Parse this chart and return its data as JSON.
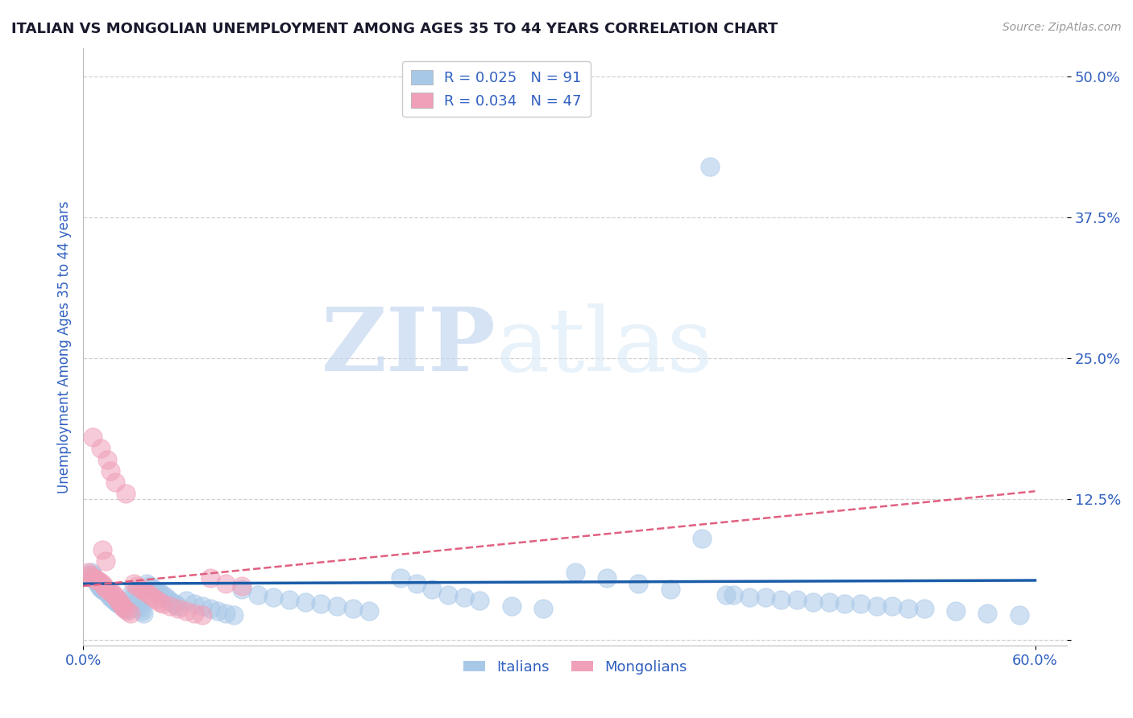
{
  "title": "ITALIAN VS MONGOLIAN UNEMPLOYMENT AMONG AGES 35 TO 44 YEARS CORRELATION CHART",
  "source": "Source: ZipAtlas.com",
  "ylabel_label": "Unemployment Among Ages 35 to 44 years",
  "legend_label_italian": "Italians",
  "legend_label_mongolian": "Mongolians",
  "xlim": [
    0.0,
    0.62
  ],
  "ylim": [
    -0.005,
    0.525
  ],
  "yticks": [
    0.0,
    0.125,
    0.25,
    0.375,
    0.5
  ],
  "ytick_labels": [
    "",
    "12.5%",
    "25.0%",
    "37.5%",
    "50.0%"
  ],
  "italian_color": "#a8c8e8",
  "mongolian_color": "#f0a0b8",
  "italian_line_color": "#1a5ca8",
  "mongolian_line_color": "#e06080",
  "background_color": "#ffffff",
  "title_color": "#1a1a2e",
  "axis_label_color": "#3060c0",
  "tick_label_color": "#3060c0",
  "R_italian": 0.025,
  "N_italian": 91,
  "R_mongolian": 0.034,
  "N_mongolian": 47,
  "italian_x": [
    0.005,
    0.006,
    0.007,
    0.008,
    0.009,
    0.01,
    0.011,
    0.012,
    0.013,
    0.014,
    0.015,
    0.016,
    0.017,
    0.018,
    0.019,
    0.02,
    0.021,
    0.022,
    0.023,
    0.024,
    0.025,
    0.026,
    0.027,
    0.028,
    0.03,
    0.031,
    0.032,
    0.033,
    0.034,
    0.035,
    0.036,
    0.037,
    0.038,
    0.04,
    0.042,
    0.044,
    0.046,
    0.048,
    0.05,
    0.052,
    0.054,
    0.056,
    0.058,
    0.06,
    0.065,
    0.07,
    0.075,
    0.08,
    0.085,
    0.09,
    0.095,
    0.1,
    0.11,
    0.12,
    0.13,
    0.14,
    0.15,
    0.16,
    0.17,
    0.18,
    0.2,
    0.21,
    0.22,
    0.23,
    0.24,
    0.25,
    0.27,
    0.29,
    0.31,
    0.33,
    0.35,
    0.37,
    0.39,
    0.41,
    0.43,
    0.45,
    0.47,
    0.49,
    0.51,
    0.53,
    0.55,
    0.57,
    0.59,
    0.395,
    0.405,
    0.42,
    0.44,
    0.46,
    0.48,
    0.5,
    0.52
  ],
  "italian_y": [
    0.06,
    0.058,
    0.055,
    0.052,
    0.05,
    0.048,
    0.046,
    0.045,
    0.044,
    0.043,
    0.042,
    0.04,
    0.038,
    0.037,
    0.036,
    0.035,
    0.034,
    0.033,
    0.032,
    0.031,
    0.03,
    0.029,
    0.028,
    0.027,
    0.04,
    0.038,
    0.036,
    0.034,
    0.032,
    0.03,
    0.028,
    0.026,
    0.024,
    0.05,
    0.048,
    0.046,
    0.044,
    0.042,
    0.04,
    0.038,
    0.036,
    0.034,
    0.032,
    0.03,
    0.035,
    0.032,
    0.03,
    0.028,
    0.026,
    0.024,
    0.022,
    0.045,
    0.04,
    0.038,
    0.036,
    0.034,
    0.032,
    0.03,
    0.028,
    0.026,
    0.055,
    0.05,
    0.045,
    0.04,
    0.038,
    0.035,
    0.03,
    0.028,
    0.06,
    0.055,
    0.05,
    0.045,
    0.09,
    0.04,
    0.038,
    0.036,
    0.034,
    0.032,
    0.03,
    0.028,
    0.026,
    0.024,
    0.022,
    0.42,
    0.04,
    0.038,
    0.036,
    0.034,
    0.032,
    0.03,
    0.028
  ],
  "mongolian_x": [
    0.003,
    0.004,
    0.005,
    0.006,
    0.007,
    0.008,
    0.009,
    0.01,
    0.011,
    0.012,
    0.013,
    0.014,
    0.015,
    0.016,
    0.017,
    0.018,
    0.019,
    0.02,
    0.021,
    0.022,
    0.023,
    0.024,
    0.025,
    0.026,
    0.027,
    0.028,
    0.03,
    0.032,
    0.034,
    0.036,
    0.038,
    0.04,
    0.042,
    0.044,
    0.046,
    0.048,
    0.05,
    0.055,
    0.06,
    0.065,
    0.07,
    0.075,
    0.08,
    0.09,
    0.1,
    0.012,
    0.014
  ],
  "mongolian_y": [
    0.06,
    0.058,
    0.056,
    0.18,
    0.055,
    0.054,
    0.053,
    0.052,
    0.17,
    0.05,
    0.048,
    0.046,
    0.16,
    0.044,
    0.15,
    0.042,
    0.04,
    0.14,
    0.038,
    0.036,
    0.034,
    0.032,
    0.03,
    0.028,
    0.13,
    0.026,
    0.024,
    0.05,
    0.048,
    0.046,
    0.044,
    0.042,
    0.04,
    0.038,
    0.036,
    0.034,
    0.032,
    0.03,
    0.028,
    0.026,
    0.024,
    0.022,
    0.055,
    0.05,
    0.048,
    0.08,
    0.07
  ],
  "italian_trend_x": [
    0.0,
    0.6
  ],
  "italian_trend_y": [
    0.05,
    0.053
  ],
  "mongolian_trend_x": [
    0.0,
    0.6
  ],
  "mongolian_trend_y": [
    0.048,
    0.132
  ]
}
